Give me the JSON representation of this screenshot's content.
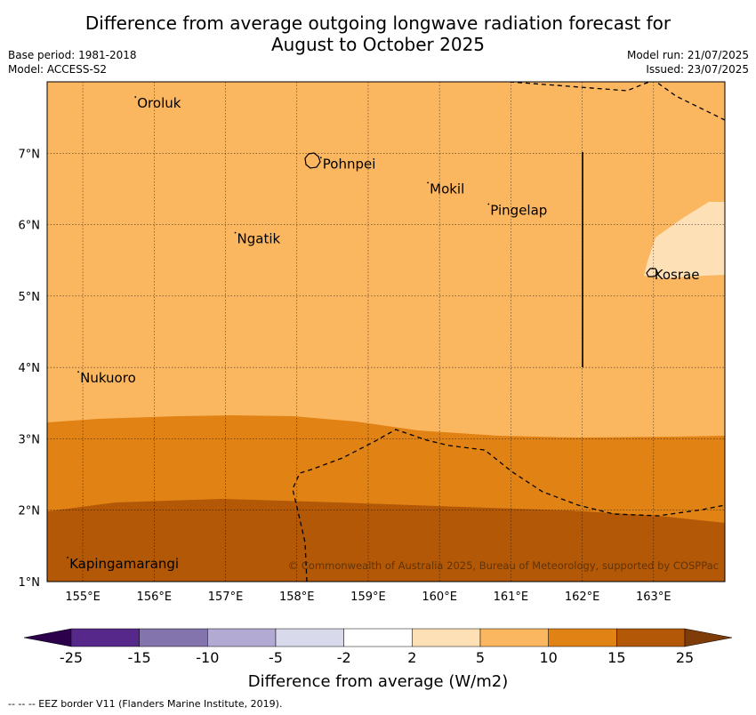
{
  "title_line1": "Difference from average outgoing longwave radiation forecast for",
  "title_line2": "August to October 2025",
  "base_period": "Base period: 1981-2018",
  "model": "Model: ACCESS-S2",
  "model_run": "Model run: 21/07/2025",
  "issued": "Issued: 23/07/2025",
  "map": {
    "lon_range": [
      154.5,
      164.0
    ],
    "lat_range": [
      1.0,
      8.0
    ],
    "x_ticks": [
      {
        "value": 155,
        "label": "155°E"
      },
      {
        "value": 156,
        "label": "156°E"
      },
      {
        "value": 157,
        "label": "157°E"
      },
      {
        "value": 158,
        "label": "158°E"
      },
      {
        "value": 159,
        "label": "159°E"
      },
      {
        "value": 160,
        "label": "160°E"
      },
      {
        "value": 161,
        "label": "161°E"
      },
      {
        "value": 162,
        "label": "162°E"
      },
      {
        "value": 163,
        "label": "163°E"
      }
    ],
    "y_ticks": [
      {
        "value": 1,
        "label": "1°N"
      },
      {
        "value": 2,
        "label": "2°N"
      },
      {
        "value": 3,
        "label": "3°N"
      },
      {
        "value": 4,
        "label": "4°N"
      },
      {
        "value": 5,
        "label": "5°N"
      },
      {
        "value": 6,
        "label": "6°N"
      },
      {
        "value": 7,
        "label": "7°N"
      }
    ],
    "places": [
      {
        "name": "Oroluk",
        "lon": 155.75,
        "lat": 7.7
      },
      {
        "name": "Pohnpei",
        "lon": 158.35,
        "lat": 6.85
      },
      {
        "name": "Mokil",
        "lon": 159.85,
        "lat": 6.5
      },
      {
        "name": "Pingelap",
        "lon": 160.7,
        "lat": 6.2
      },
      {
        "name": "Ngatik",
        "lon": 157.15,
        "lat": 5.8
      },
      {
        "name": "Kosrae",
        "lon": 163.0,
        "lat": 5.3
      },
      {
        "name": "Nukuoro",
        "lon": 154.95,
        "lat": 3.85
      },
      {
        "name": "Kapingamarangi",
        "lon": 154.8,
        "lat": 1.25
      }
    ],
    "copyright": "© Commonwealth of Australia 2025, Bureau of Meteorology, supported by COSPPac"
  },
  "colorbar": {
    "ticks": [
      "-25",
      "-15",
      "-10",
      "-5",
      "-2",
      "2",
      "5",
      "10",
      "15",
      "25"
    ],
    "colors": [
      "#55288a",
      "#8474ae",
      "#b3aad3",
      "#d9d9ec",
      "#ffffff",
      "#fee0b6",
      "#fbb660",
      "#e08214",
      "#b35806"
    ],
    "under_color": "#2d004b",
    "over_color": "#7f3b08",
    "label": "Difference from average (W/m2)"
  },
  "colors": {
    "c5_10": "#fbb660",
    "c10_15": "#e08214",
    "c15_25": "#b35806",
    "c2_5": "#fee0b6"
  },
  "footer": "--  --  -- EEZ border V11 (Flanders Marine Institute, 2019)."
}
